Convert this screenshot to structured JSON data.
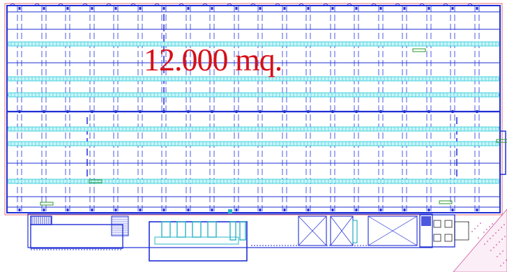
{
  "drawing": {
    "area_label": "12.000 mq.",
    "colors": {
      "structure": "#1f2fd6",
      "dashed_grid": "#3a48e0",
      "cyan_beams": "#22c8d8",
      "beam_fill": "#c8f4f8",
      "fixtures": "#2bb5c4",
      "label_red": "#d4101a",
      "green_marks": "#2a9a2a",
      "hatch": "#c42a8a",
      "edge_red": "#e0303a"
    }
  }
}
